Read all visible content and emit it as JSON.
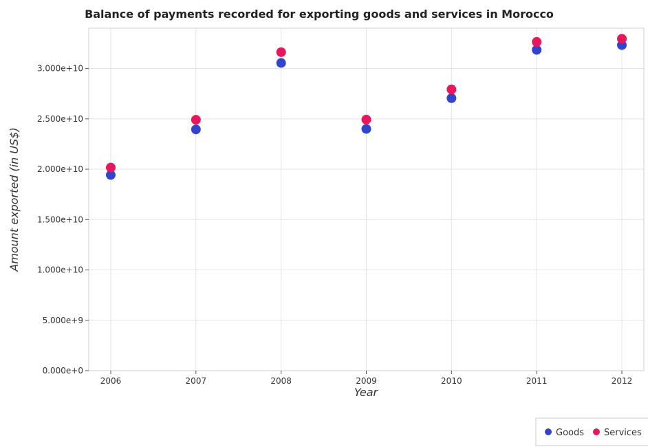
{
  "chart_data": {
    "type": "scatter",
    "title": "Balance of payments recorded for exporting goods and services in Morocco",
    "xlabel": "Year",
    "ylabel": "Amount exported (in US$)",
    "categories": [
      "2006",
      "2007",
      "2008",
      "2009",
      "2010",
      "2011",
      "2012"
    ],
    "ylim": [
      0,
      34000000000
    ],
    "yticks": [
      0,
      5000000000,
      10000000000,
      15000000000,
      20000000000,
      25000000000,
      30000000000
    ],
    "ytick_labels": [
      "0.000e+0",
      "5.000e+9",
      "1.000e+10",
      "1.500e+10",
      "2.000e+10",
      "2.500e+10",
      "3.000e+10"
    ],
    "grid": true,
    "legend_position": "bottom-right",
    "series": [
      {
        "name": "Goods",
        "color": "#3344cc",
        "values": [
          19430000000,
          23950000000,
          30550000000,
          24000000000,
          27050000000,
          31850000000,
          32320000000
        ]
      },
      {
        "name": "Services",
        "color": "#e8175d",
        "values": [
          20170000000,
          24910000000,
          31620000000,
          24930000000,
          27920000000,
          32640000000,
          32950000000
        ]
      }
    ]
  }
}
